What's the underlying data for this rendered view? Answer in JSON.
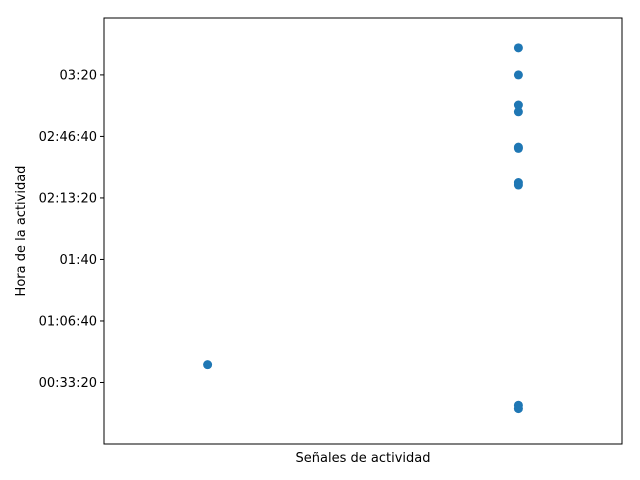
{
  "chart_data": {
    "type": "scatter",
    "title": "",
    "xlabel": "Señales de actividad",
    "ylabel": "Hora de la actividad",
    "x_ticks_visible": false,
    "ylim_seconds": [
      0,
      13850
    ],
    "y_ticks": [
      {
        "value": 2000,
        "label": "00:33:20"
      },
      {
        "value": 4000,
        "label": "01:06:40"
      },
      {
        "value": 6000,
        "label": "01:40"
      },
      {
        "value": 8000,
        "label": "02:13:20"
      },
      {
        "value": 10000,
        "label": "02:46:40"
      },
      {
        "value": 12000,
        "label": "03:20"
      }
    ],
    "marker_color": "#1f77b4",
    "points": [
      {
        "x": 0.2,
        "y": 2580
      },
      {
        "x": 0.8,
        "y": 1260
      },
      {
        "x": 0.8,
        "y": 1150
      },
      {
        "x": 0.8,
        "y": 8500
      },
      {
        "x": 0.8,
        "y": 8420
      },
      {
        "x": 0.8,
        "y": 9650
      },
      {
        "x": 0.8,
        "y": 9610
      },
      {
        "x": 0.8,
        "y": 10800
      },
      {
        "x": 0.8,
        "y": 11020
      },
      {
        "x": 0.8,
        "y": 12000
      },
      {
        "x": 0.8,
        "y": 12880
      }
    ],
    "xlim": [
      0,
      1
    ]
  }
}
